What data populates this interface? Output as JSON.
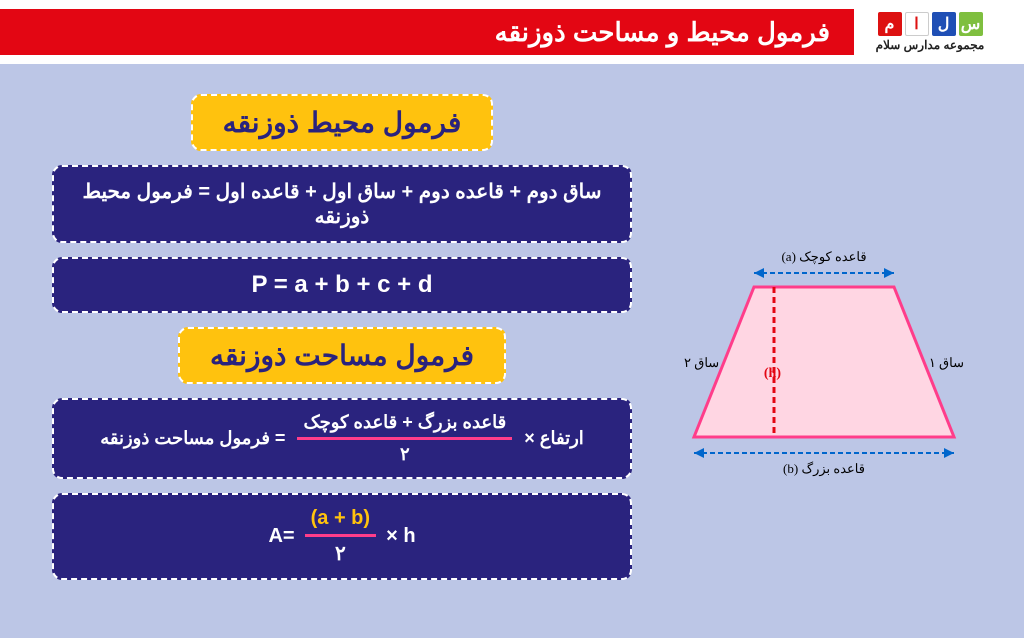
{
  "header": {
    "title": "فرمول محیط و مساحت ذوزنقه",
    "logo_boxes": [
      {
        "char": "س",
        "bg": "#7fbf3f"
      },
      {
        "char": "ل",
        "bg": "#1f4fb5"
      },
      {
        "char": "ا",
        "bg": "#ffffff",
        "fg": "#d11"
      },
      {
        "char": "م",
        "bg": "#d11"
      }
    ],
    "logo_sub": "مجموعه مدارس سلام"
  },
  "perimeter": {
    "title": "فرمول محیط ذوزنقه",
    "words": "ساق دوم + قاعده دوم + ساق اول + قاعده اول = فرمول محیط ذوزنقه",
    "formula": "P = a + b + c + d"
  },
  "area": {
    "title": "فرمول مساحت ذوزنقه",
    "mult_label": "ارتفاع ×",
    "frac_top": "قاعده بزرگ + قاعده کوچک",
    "frac_bot": "۲",
    "equals": "= فرمول مساحت ذوزنقه",
    "f2_left": "A=",
    "f2_top": "(a + b)",
    "f2_bot": "۲",
    "f2_right": "×  h"
  },
  "diagram": {
    "top_label": "قاعده کوچک (a)",
    "bottom_label": "قاعده بزرگ (b)",
    "side1": "ساق ۱",
    "side2": "ساق ۲",
    "h_label": "(h)",
    "colors": {
      "fill": "#ffd6e3",
      "stroke": "#ff3d8a",
      "arrow": "#0066cc",
      "height": "#e30613"
    }
  },
  "palette": {
    "background": "#bcc6e6",
    "banner": "#e30613",
    "badge_bg": "#ffc20e",
    "box_bg": "#2a237e",
    "frac_line": "#ff3d8a"
  }
}
